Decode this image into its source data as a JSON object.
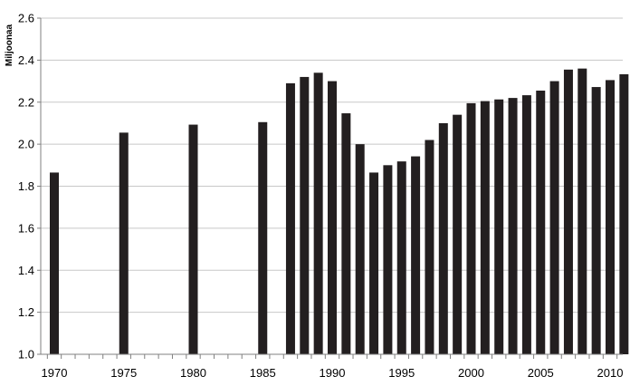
{
  "chart_data": {
    "type": "bar",
    "title": "",
    "xlabel": "",
    "ylabel": "Miljoonaa",
    "ylim": [
      1.0,
      2.6
    ],
    "y_ticks": [
      1.0,
      1.2,
      1.4,
      1.6,
      1.8,
      2.0,
      2.2,
      2.4,
      2.6
    ],
    "y_tick_labels": [
      "1.0",
      "1.2",
      "1.4",
      "1.6",
      "1.8",
      "2.0",
      "2.2",
      "2.4",
      "2.6"
    ],
    "xlim": [
      1970,
      2011
    ],
    "x_ticks": [
      1970,
      1975,
      1980,
      1985,
      1990,
      1995,
      2000,
      2005,
      2010
    ],
    "x_tick_labels": [
      "1970",
      "1975",
      "1980",
      "1985",
      "1990",
      "1995",
      "2000",
      "2005",
      "2010"
    ],
    "grid": true,
    "legend": "none",
    "colors": {
      "bar": "#231f20",
      "grid": "#c8c8c8",
      "axis": "#808080"
    },
    "x": [
      1970,
      1975,
      1980,
      1985,
      1987,
      1988,
      1989,
      1990,
      1991,
      1992,
      1993,
      1994,
      1995,
      1996,
      1997,
      1998,
      1999,
      2000,
      2001,
      2002,
      2003,
      2004,
      2005,
      2006,
      2007,
      2008,
      2009,
      2010,
      2011
    ],
    "values": [
      1.865,
      2.055,
      2.093,
      2.105,
      2.29,
      2.32,
      2.34,
      2.3,
      2.147,
      2.0,
      1.865,
      1.9,
      1.918,
      1.942,
      2.02,
      2.1,
      2.14,
      2.195,
      2.205,
      2.213,
      2.22,
      2.233,
      2.255,
      2.3,
      2.355,
      2.36,
      2.272,
      2.305,
      2.333
    ]
  }
}
